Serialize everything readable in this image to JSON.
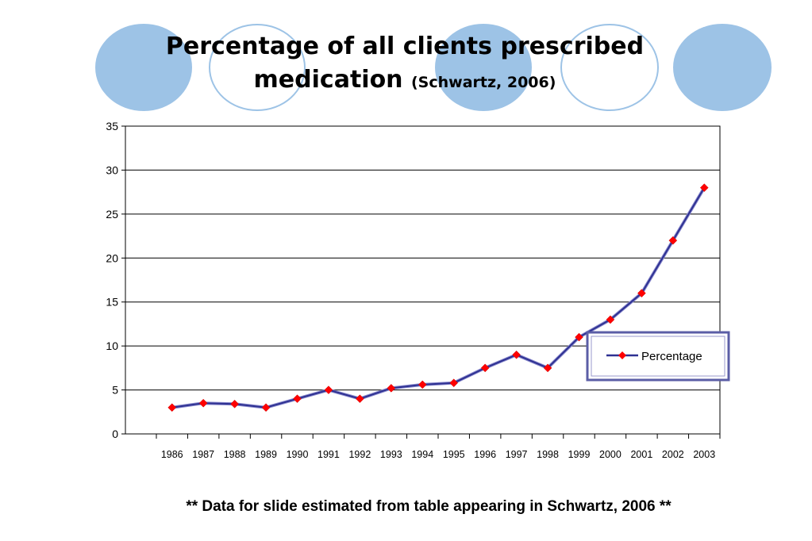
{
  "slide": {
    "title_main": "Percentage of all clients prescribed medication",
    "title_cite": "(Schwartz, 2006)",
    "footnote": "** Data for slide estimated from table appearing in Schwartz, 2006 **"
  },
  "colors": {
    "accent_circle": "#9dc3e6",
    "line": "#2e3192",
    "marker": "#ff0000",
    "legend_border": "#5b5ea6"
  },
  "chart_data": {
    "type": "line",
    "title": "",
    "xlabel": "",
    "ylabel": "",
    "categories": [
      "1986",
      "1987",
      "1988",
      "1989",
      "1990",
      "1991",
      "1992",
      "1993",
      "1994",
      "1995",
      "1996",
      "1997",
      "1998",
      "1999",
      "2000",
      "2001",
      "2002",
      "2003"
    ],
    "series": [
      {
        "name": "Percentage",
        "values": [
          3,
          3.5,
          3.4,
          3,
          4,
          5,
          4,
          5.2,
          5.6,
          5.8,
          7.5,
          9,
          7.5,
          11,
          13,
          16,
          22,
          28
        ]
      }
    ],
    "ylim": [
      0,
      35
    ],
    "yticks": [
      0,
      5,
      10,
      15,
      20,
      25,
      30,
      35
    ],
    "grid": "horizontal",
    "legend_position": "right"
  }
}
